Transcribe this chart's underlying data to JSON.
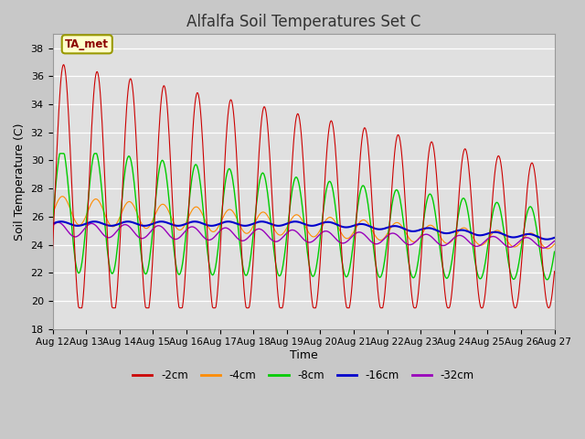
{
  "title": "Alfalfa Soil Temperatures Set C",
  "xlabel": "Time",
  "ylabel": "Soil Temperature (C)",
  "ylim": [
    18,
    39
  ],
  "yticks": [
    18,
    20,
    22,
    24,
    26,
    28,
    30,
    32,
    34,
    36,
    38
  ],
  "x_tick_labels": [
    "Aug 12",
    "Aug 13",
    "Aug 14",
    "Aug 15",
    "Aug 16",
    "Aug 17",
    "Aug 18",
    "Aug 19",
    "Aug 20",
    "Aug 21",
    "Aug 22",
    "Aug 23",
    "Aug 24",
    "Aug 25",
    "Aug 26",
    "Aug 27"
  ],
  "fig_facecolor": "#c8c8c8",
  "ax_facecolor": "#e0e0e0",
  "grid_color": "#ffffff",
  "annotation_text": "TA_met",
  "annotation_fg": "#8b0000",
  "annotation_bg": "#ffffcc",
  "annotation_border": "#999900",
  "legend_entries": [
    "-2cm",
    "-4cm",
    "-8cm",
    "-16cm",
    "-32cm"
  ],
  "legend_colors": [
    "#cc0000",
    "#ff8c00",
    "#00cc00",
    "#0000cc",
    "#9900bb"
  ],
  "series": {
    "2cm_color": "#cc0000",
    "4cm_color": "#ff8c00",
    "8cm_color": "#00cc00",
    "16cm_color": "#0000cc",
    "32cm_color": "#9900bb"
  },
  "n_days": 15,
  "pts_per_day": 48
}
